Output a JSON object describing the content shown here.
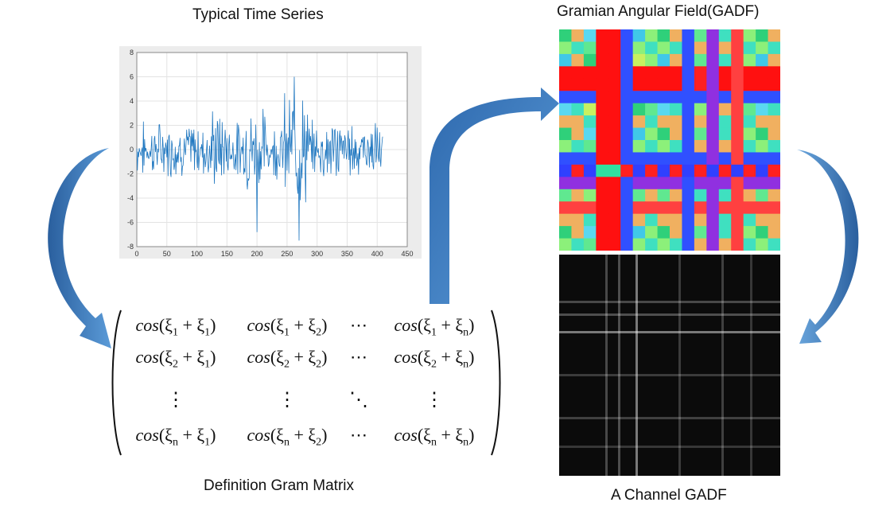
{
  "titles": {
    "time_series": "Typical Time Series",
    "gadf": "Gramian Angular Field(GADF)",
    "gram": "Definition Gram Matrix",
    "channel": "A Channel GADF"
  },
  "chart_data": {
    "type": "line",
    "title": "",
    "xlabel": "",
    "ylabel": "",
    "xlim": [
      0,
      450
    ],
    "ylim": [
      -8,
      8
    ],
    "x_ticks": [
      0,
      50,
      100,
      150,
      200,
      250,
      300,
      350,
      400,
      450
    ],
    "y_ticks": [
      -8,
      -6,
      -4,
      -2,
      0,
      2,
      4,
      6,
      8
    ],
    "grid": true,
    "series_color": "#1f77c0",
    "n_points": 410,
    "y_range_observed": [
      -7.5,
      6
    ]
  },
  "matrix": {
    "rows": [
      [
        {
          "a": "1",
          "b": "1"
        },
        {
          "a": "1",
          "b": "2"
        },
        "⋯",
        {
          "a": "1",
          "b": "n"
        }
      ],
      [
        {
          "a": "2",
          "b": "1"
        },
        {
          "a": "2",
          "b": "2"
        },
        "⋯",
        {
          "a": "2",
          "b": "n"
        }
      ],
      [
        "⋮",
        "⋮",
        "⋱",
        "⋮"
      ],
      [
        {
          "a": "n",
          "b": "1"
        },
        {
          "a": "n",
          "b": "2"
        },
        "⋯",
        {
          "a": "n",
          "b": "n"
        }
      ]
    ],
    "fn": "cos",
    "symbol": "ξ"
  },
  "colors": {
    "arrow": "#3f7fc4",
    "arrow_dark": "#2a5f9e",
    "plot_line": "#1f77c0"
  }
}
